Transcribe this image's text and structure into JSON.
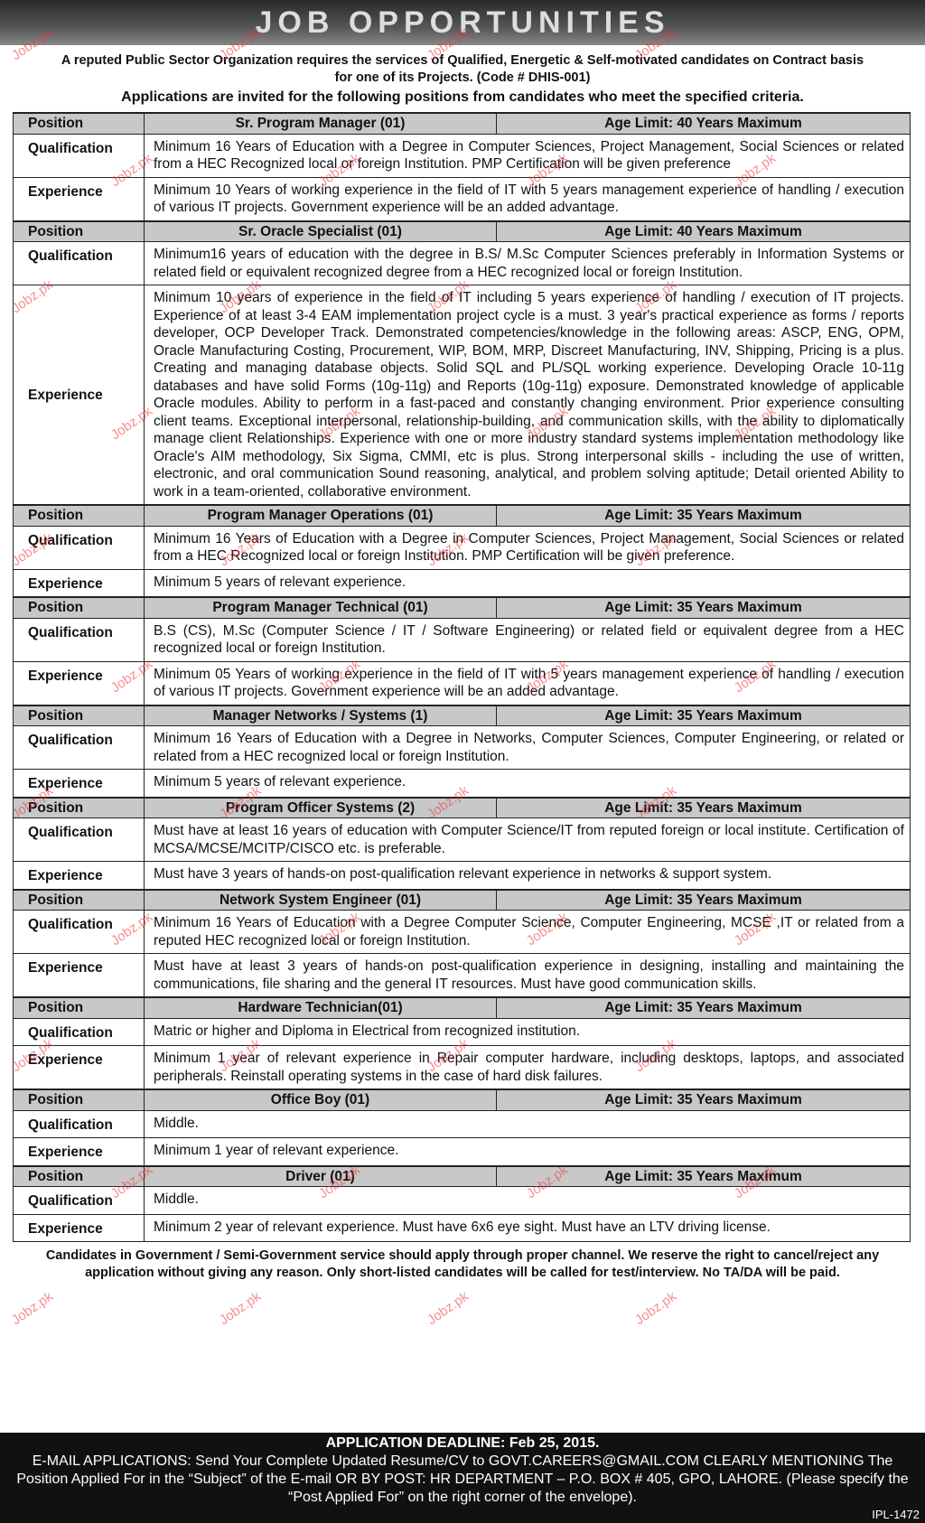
{
  "banner": "JOB OPPORTUNITIES",
  "intro": "A reputed Public Sector Organization requires the services of Qualified, Energetic & Self-motivated candidates on Contract basis for one of its Projects. (Code # DHIS-001)",
  "invite": "Applications are invited for the following positions from candidates who meet the specified criteria.",
  "labels": {
    "position": "Position",
    "qualification": "Qualification",
    "experience": "Experience"
  },
  "positions": [
    {
      "title": "Sr. Program Manager (01)",
      "age": "Age Limit: 40 Years Maximum",
      "qualification": "Minimum 16 Years of Education with a Degree in Computer Sciences, Project Management, Social Sciences or related from a HEC Recognized local or foreign Institution. PMP Certification will be given preference",
      "experience": "Minimum 10 Years of working experience in the field of IT with 5 years management experience of handling / execution of various IT projects. Government experience will be an added advantage."
    },
    {
      "title": "Sr. Oracle Specialist (01)",
      "age": "Age Limit: 40 Years Maximum",
      "qualification": "Minimum16 years of education with the degree in B.S/ M.Sc Computer Sciences preferably in Information Systems or related field or equivalent recognized degree from a HEC recognized local or foreign Institution.",
      "experience": "Minimum 10 years of experience in the field of IT including 5 years experience of handling / execution of IT projects. Experience of at least 3-4 EAM implementation project cycle is a must. 3 year's practical experience as forms / reports developer, OCP Developer Track. Demonstrated competencies/knowledge in the following areas: ASCP, ENG, OPM, Oracle Manufacturing Costing, Procurement, WIP, BOM, MRP, Discreet Manufacturing, INV, Shipping, Pricing is a plus. Creating and managing database objects. Solid SQL and PL/SQL working experience. Developing Oracle 10-11g databases and have solid Forms (10g-11g) and Reports (10g-11g) exposure. Demonstrated knowledge of applicable Oracle modules. Ability to perform in a fast-paced and constantly changing environment. Prior experience consulting client teams. Exceptional interpersonal, relationship-building, and communication skills, with the ability to diplomatically manage client Relationships. Experience with one or more industry standard systems implementation methodology like Oracle's AIM methodology, Six Sigma, CMMI, etc is plus. Strong interpersonal skills - including the use of written, electronic, and oral communication Sound reasoning, analytical, and problem solving aptitude; Detail oriented Ability to work in a team-oriented, collaborative environment."
    },
    {
      "title": "Program Manager Operations (01)",
      "age": "Age Limit: 35 Years Maximum",
      "qualification": "Minimum 16 Years of Education with a Degree in Computer Sciences, Project Management, Social Sciences or related from a HEC Recognized local or foreign Institution. PMP Certification will be given preference.",
      "experience": "Minimum 5 years of relevant experience."
    },
    {
      "title": "Program Manager Technical (01)",
      "age": "Age Limit: 35 Years Maximum",
      "qualification": "B.S (CS), M.Sc (Computer Science / IT / Software Engineering) or related field or equivalent degree from a HEC recognized local or foreign Institution.",
      "experience": "Minimum 05 Years of working experience in the field of IT with 5 years management experience of handling / execution of various IT projects. Government experience will be an added advantage."
    },
    {
      "title": "Manager Networks / Systems (1)",
      "age": "Age Limit: 35 Years Maximum",
      "qualification": "Minimum 16 Years of Education with a Degree in Networks, Computer Sciences, Computer Engineering, or related or related from a HEC recognized local or foreign Institution.",
      "experience": "Minimum 5 years of relevant experience."
    },
    {
      "title": "Program Officer Systems (2)",
      "age": "Age Limit: 35 Years Maximum",
      "qualification": "Must have at least 16 years of education with Computer Science/IT from reputed foreign or local institute. Certification of MCSA/MCSE/MCITP/CISCO etc. is preferable.",
      "experience": "Must have 3 years of hands-on post-qualification relevant experience in networks & support system."
    },
    {
      "title": "Network System Engineer (01)",
      "age": "Age Limit: 35 Years Maximum",
      "qualification": "Minimum 16 Years of Education with a Degree Computer Science, Computer Engineering, MCSE ,IT or related from a reputed HEC recognized local or foreign Institution.",
      "experience": "Must have at least 3 years of hands-on post-qualification experience in designing, installing and maintaining the communications, file sharing and the general IT resources. Must have good communication skills."
    },
    {
      "title": "Hardware Technician(01)",
      "age": "Age Limit: 35 Years Maximum",
      "qualification": "Matric or higher and Diploma in Electrical from recognized institution.",
      "experience": "Minimum 1 year of relevant experience in Repair computer hardware, including desktops, laptops, and associated peripherals. Reinstall operating systems in the case of hard disk failures."
    },
    {
      "title": "Office Boy (01)",
      "age": "Age Limit: 35 Years Maximum",
      "qualification": "Middle.",
      "experience": "Minimum 1 year of relevant experience."
    },
    {
      "title": "Driver (01)",
      "age": "Age Limit: 35 Years Maximum",
      "qualification": "Middle.",
      "experience": "Minimum 2 year of relevant experience. Must have 6x6 eye sight. Must have an LTV driving license."
    }
  ],
  "note": "Candidates in Government / Semi-Government service should apply through proper channel. We reserve the right to cancel/reject any application without giving any reason. Only short-listed candidates will be called for test/interview. No TA/DA will be paid.",
  "deadline": "APPLICATION DEADLINE: Feb 25, 2015.",
  "howto": "E-MAIL APPLICATIONS: Send Your Complete Updated Resume/CV to GOVT.CAREERS@GMAIL.COM CLEARLY MENTIONING The Position Applied For in the “Subject” of the E-mail OR BY POST: HR DEPARTMENT – P.O. BOX # 405, GPO, LAHORE. (Please specify the “Post Applied For” on the right corner of the envelope).",
  "code": "IPL-1472",
  "watermark": "Jobz.pk"
}
